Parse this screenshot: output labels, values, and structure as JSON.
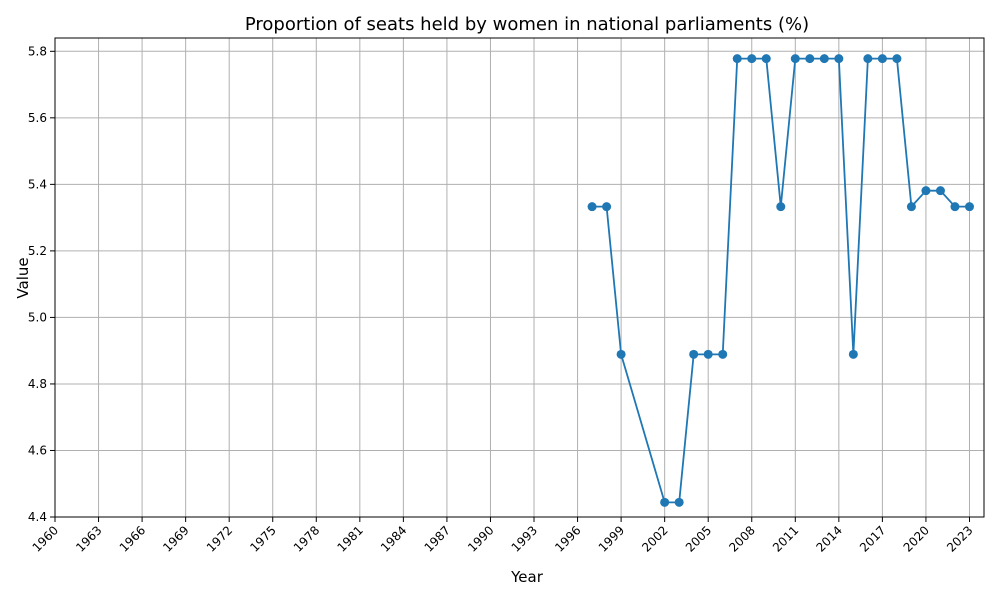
{
  "chart_data": {
    "type": "line",
    "title": "Proportion of seats held by women in national parliaments (%)",
    "xlabel": "Year",
    "ylabel": "Value",
    "xlim": [
      1960,
      2024
    ],
    "ylim": [
      4.4,
      5.84
    ],
    "x_ticks": [
      "1960",
      "1963",
      "1966",
      "1969",
      "1972",
      "1975",
      "1978",
      "1981",
      "1984",
      "1987",
      "1990",
      "1993",
      "1996",
      "1999",
      "2002",
      "2005",
      "2008",
      "2011",
      "2014",
      "2017",
      "2020",
      "2023"
    ],
    "y_ticks": [
      "4.4",
      "4.6",
      "4.8",
      "5.0",
      "5.2",
      "5.4",
      "5.6",
      "5.8"
    ],
    "grid": true,
    "color": "#1f77b4",
    "series": [
      {
        "x": [
          1997,
          1998,
          1999,
          2002,
          2003,
          2004,
          2005,
          2006,
          2007,
          2008,
          2009,
          2010,
          2011,
          2012,
          2013,
          2014,
          2015,
          2016,
          2017,
          2018,
          2019,
          2020,
          2021,
          2022,
          2023
        ],
        "values": [
          5.333,
          5.333,
          4.889,
          4.444,
          4.444,
          4.889,
          4.889,
          4.889,
          5.778,
          5.778,
          5.778,
          5.333,
          5.778,
          5.778,
          5.778,
          5.778,
          4.889,
          5.778,
          5.778,
          5.778,
          5.333,
          5.381,
          5.381,
          5.333,
          5.333
        ]
      }
    ]
  }
}
